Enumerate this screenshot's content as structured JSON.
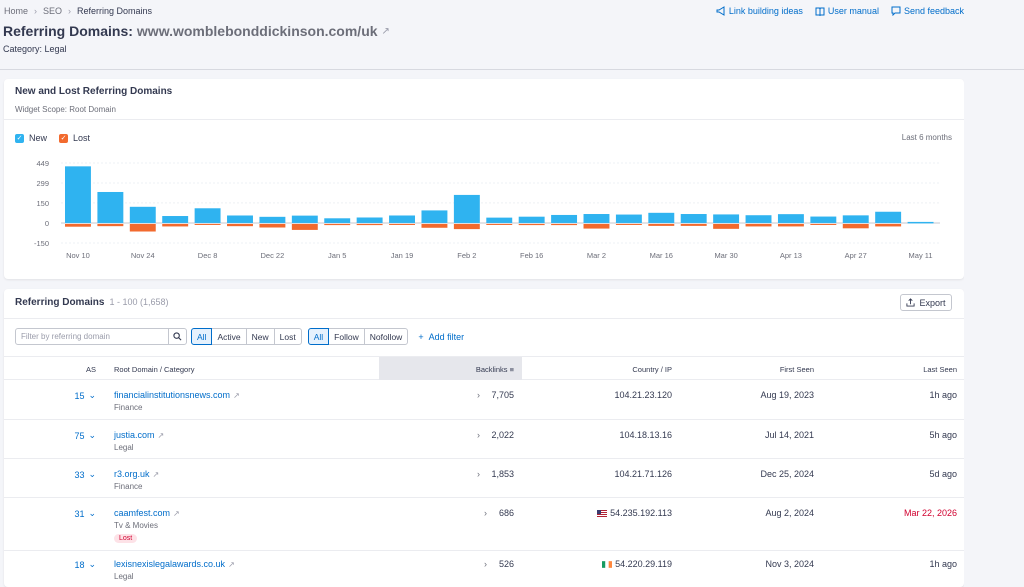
{
  "breadcrumb": [
    "Home",
    "SEO",
    "Referring Domains"
  ],
  "title": {
    "label": "Referring Domains:",
    "domain": "www.womblebonddickinson.com/uk"
  },
  "category": "Category: Legal",
  "toplinks": [
    "Link building ideas",
    "User manual",
    "Send feedback"
  ],
  "chart_card": {
    "title": "New and Lost Referring Domains",
    "scope": "Widget Scope: Root Domain",
    "legend": [
      {
        "label": "New",
        "color": "#2fb3f0"
      },
      {
        "label": "Lost",
        "color": "#f26a2e"
      }
    ],
    "period": "Last 6 months"
  },
  "chart_data": {
    "type": "bar",
    "yticks": [
      449,
      299,
      150,
      0,
      -150
    ],
    "ylim": [
      -150,
      449
    ],
    "xticks": [
      "Nov 10",
      "Nov 24",
      "Dec 8",
      "Dec 22",
      "Jan 5",
      "Jan 19",
      "Feb 2",
      "Feb 16",
      "Mar 2",
      "Mar 16",
      "Mar 30",
      "Apr 13",
      "Apr 27",
      "May 11"
    ],
    "series": [
      {
        "name": "New",
        "color": "#2fb3f0",
        "values": [
          424,
          232,
          121,
          52,
          110,
          56,
          46,
          55,
          35,
          41,
          56,
          94,
          210,
          40,
          47,
          60,
          67,
          63,
          76,
          67,
          64,
          58,
          66,
          48,
          57,
          84,
          8
        ]
      },
      {
        "name": "Lost",
        "color": "#f26a2e",
        "values": [
          -28,
          -24,
          -64,
          -26,
          -4,
          -24,
          -34,
          -52,
          -16,
          -16,
          -14,
          -36,
          -46,
          -14,
          -16,
          -16,
          -42,
          -12,
          -22,
          -22,
          -44,
          -26,
          -26,
          -12,
          -40,
          -26,
          0
        ]
      }
    ]
  },
  "table": {
    "title": "Referring Domains",
    "range": "1 - 100 (1,658)",
    "export_label": "Export",
    "search_placeholder": "Filter by referring domain",
    "status_filters": [
      "All",
      "Active",
      "New",
      "Lost"
    ],
    "follow_filters": [
      "All",
      "Follow",
      "Nofollow"
    ],
    "add_filter": "Add filter",
    "headers": {
      "as": "AS",
      "root": "Root Domain / Category",
      "backlinks": "Backlinks",
      "country": "Country / IP",
      "first": "First Seen",
      "last": "Last Seen"
    },
    "rows": [
      {
        "as": "15",
        "domain": "financialinstitutionsnews.com",
        "category": "Finance",
        "backlinks": "7,705",
        "ip": "104.21.23.120",
        "first_seen": "Aug 19, 2023",
        "last_seen": "1h ago"
      },
      {
        "as": "75",
        "domain": "justia.com",
        "category": "Legal",
        "backlinks": "2,022",
        "ip": "104.18.13.16",
        "first_seen": "Jul 14, 2021",
        "last_seen": "5h ago"
      },
      {
        "as": "33",
        "domain": "r3.org.uk",
        "category": "Finance",
        "backlinks": "1,853",
        "ip": "104.21.71.126",
        "first_seen": "Dec 25, 2024",
        "last_seen": "5d ago"
      },
      {
        "as": "31",
        "domain": "caamfest.com",
        "category": "Tv & Movies",
        "badge": "Lost",
        "backlinks": "686",
        "ip": "54.235.192.113",
        "flag": "us",
        "first_seen": "Aug 2, 2024",
        "last_seen": "Mar 22, 2026"
      },
      {
        "as": "18",
        "domain": "lexisnexislegalawards.co.uk",
        "category": "Legal",
        "backlinks": "526",
        "ip": "54.220.29.119",
        "flag": "ie",
        "first_seen": "Nov 3, 2024",
        "last_seen": "1h ago"
      }
    ]
  }
}
